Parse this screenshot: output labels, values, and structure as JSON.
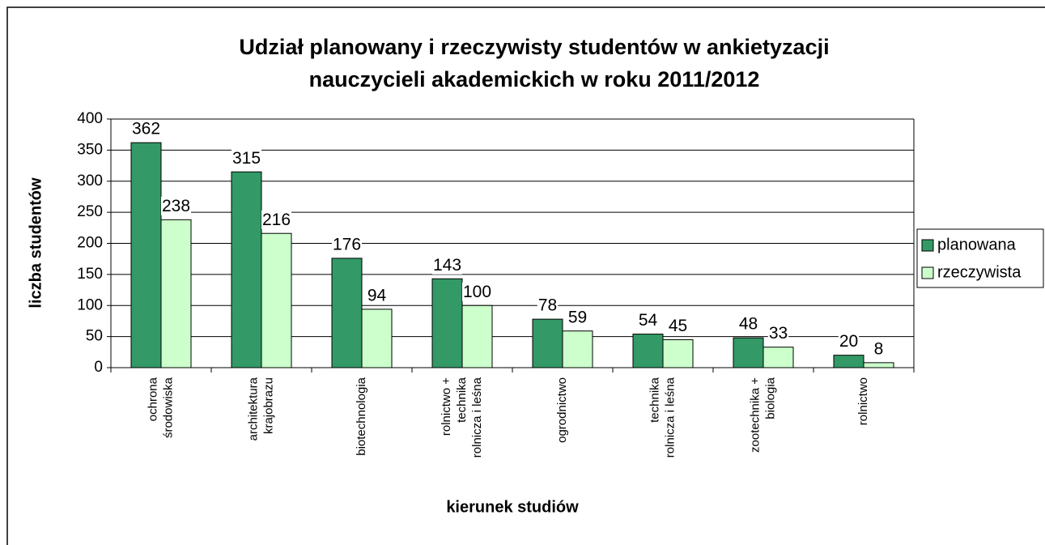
{
  "chart_data": {
    "type": "bar",
    "title": [
      "Udział planowany i rzeczywisty studentów w ankietyzacji",
      "nauczycieli akademickich w roku 2011/2012"
    ],
    "x_label": "kierunek studiów",
    "y_label": "liczba studentów",
    "categories": [
      [
        "ochrona",
        "środowiska"
      ],
      [
        "architektura",
        "krajobrazu"
      ],
      [
        "biotechnologia"
      ],
      [
        "rolnictwo +",
        "technika",
        "rolnicza i leśna"
      ],
      [
        "ogrodnictwo"
      ],
      [
        "technika",
        "rolnicza i leśna"
      ],
      [
        "zootechnika +",
        "biologia"
      ],
      [
        "rolnictwo"
      ]
    ],
    "series": [
      {
        "name": "planowana",
        "color": "#339966",
        "values": [
          362,
          315,
          176,
          143,
          78,
          54,
          48,
          20
        ]
      },
      {
        "name": "rzeczywista",
        "color": "#ccffcc",
        "values": [
          238,
          216,
          94,
          100,
          59,
          45,
          33,
          8
        ]
      }
    ],
    "ylim": [
      0,
      400
    ],
    "yticks": [
      0,
      50,
      100,
      150,
      200,
      250,
      300,
      350,
      400
    ],
    "grid": true,
    "legend": "right"
  }
}
